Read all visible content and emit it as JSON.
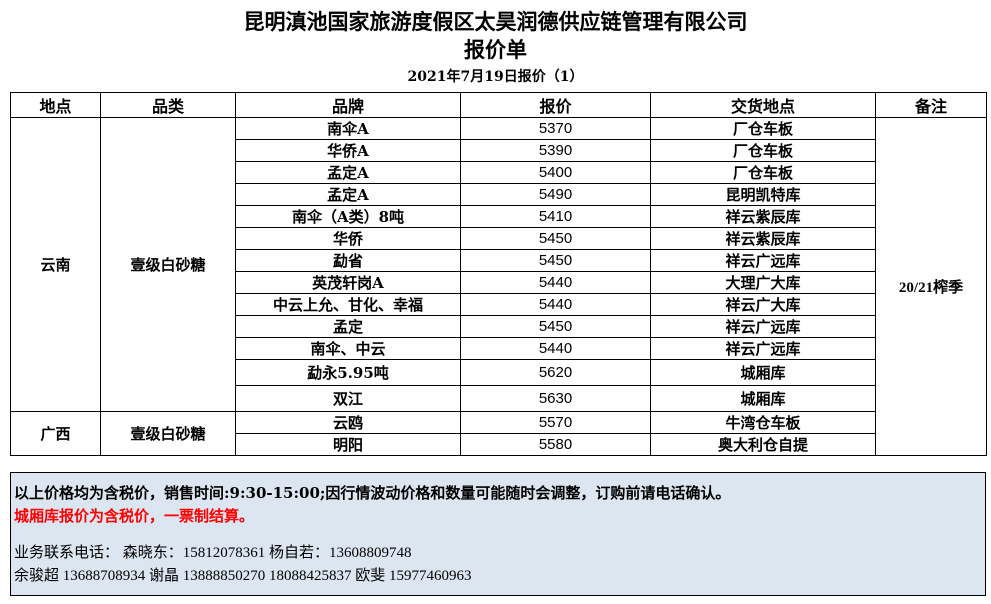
{
  "title": "昆明滇池国家旅游度假区太昊润德供应链管理有限公司",
  "subtitle": "报价单",
  "date_line": "2021年7月19日报价（1）",
  "headers": [
    "地点",
    "品类",
    "品牌",
    "报价",
    "交货地点",
    "备注"
  ],
  "groups": [
    {
      "location": "云南",
      "category": "壹级白砂糖",
      "rows": [
        {
          "brand": "南伞A",
          "price": "5370",
          "delivery": "厂仓车板"
        },
        {
          "brand": "华侨A",
          "price": "5390",
          "delivery": "厂仓车板"
        },
        {
          "brand": "孟定A",
          "price": "5400",
          "delivery": "厂仓车板"
        },
        {
          "brand": "孟定A",
          "price": "5490",
          "delivery": "昆明凯特库"
        },
        {
          "brand": "南伞（A类）8吨",
          "price": "5410",
          "delivery": "祥云紫辰库"
        },
        {
          "brand": "华侨",
          "price": "5450",
          "delivery": "祥云紫辰库"
        },
        {
          "brand": "勐省",
          "price": "5450",
          "delivery": "祥云广远库"
        },
        {
          "brand": "英茂轩岗A",
          "price": "5440",
          "delivery": "大理广大库"
        },
        {
          "brand": "中云上允、甘化、幸福",
          "price": "5440",
          "delivery": "祥云广大库"
        },
        {
          "brand": "孟定",
          "price": "5450",
          "delivery": "祥云广远库"
        },
        {
          "brand": "南伞、中云",
          "price": "5440",
          "delivery": "祥云广远库"
        },
        {
          "brand": "勐永5.95吨",
          "price": "5620",
          "delivery": "城厢库"
        },
        {
          "brand": "双江",
          "price": "5630",
          "delivery": "城厢库"
        }
      ]
    },
    {
      "location": "广西",
      "category": "壹级白砂糖",
      "rows": [
        {
          "brand": "云鸥",
          "price": "5570",
          "delivery": "牛湾仓车板"
        },
        {
          "brand": "明阳",
          "price": "5580",
          "delivery": "奥大利仓自提"
        }
      ]
    }
  ],
  "remark": "20/21榨季",
  "note_line1": "以上价格均为含税价，销售时间:9:30-15:00;因行情波动价格和数量可能随时会调整，订购前请电话确认。",
  "note_line2": "城厢库报价为含税价，一票制结算。",
  "note_line2_color": "#ff0000",
  "contact_line1": "业务联系电话：  森晓东：15812078361      杨自若：13608809748",
  "contact_line2": "余骏超 13688708934      谢晶 13888850270 18088425837     欧斐 15977460963"
}
